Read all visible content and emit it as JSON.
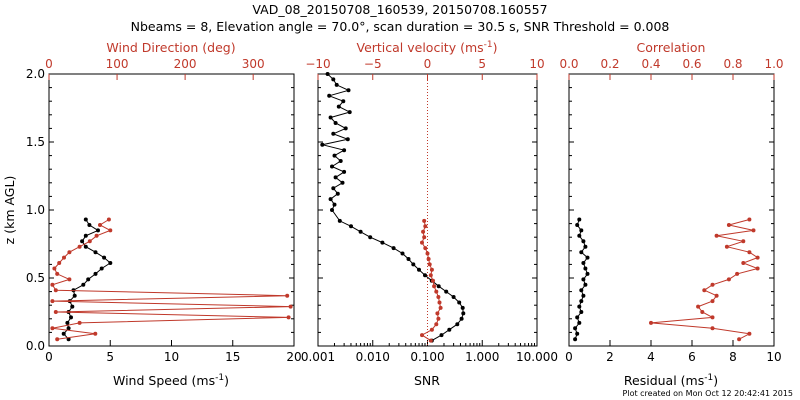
{
  "title_line1": "VAD_08_20150708_160539, 20150708.160557",
  "title_line2": "Nbeams = 8, Elevation angle = 70.0°, scan duration = 30.5 s, SNR Threshold = 0.008",
  "footer": "Plot created on Mon Oct 12 20:42:41 2015",
  "colors": {
    "black": "#000000",
    "red": "#c0392b"
  },
  "chart_data": [
    {
      "type": "line",
      "panel": "wind",
      "ylabel": "z (km AGL)",
      "ylim": [
        0,
        2.0
      ],
      "yticks": [
        "0.0",
        "0.5",
        "1.0",
        "1.5",
        "2.0"
      ],
      "xlabel": "Wind Speed (ms",
      "xlabel_unit_exp": "-1",
      "xlim": [
        0,
        20
      ],
      "xticks": [
        "0",
        "5",
        "10",
        "15",
        "20"
      ],
      "top_label": "Wind Direction (deg)",
      "top_lim": [
        0,
        360
      ],
      "top_ticks": [
        "0",
        "100",
        "200",
        "300"
      ],
      "series": [
        {
          "name": "Wind Speed",
          "color": "black",
          "axis": "bottom",
          "z": [
            0.05,
            0.09,
            0.13,
            0.17,
            0.21,
            0.25,
            0.29,
            0.33,
            0.37,
            0.41,
            0.45,
            0.49,
            0.53,
            0.57,
            0.61,
            0.65,
            0.69,
            0.73,
            0.77,
            0.81,
            0.85,
            0.89,
            0.93
          ],
          "values": [
            1.6,
            1.2,
            1.6,
            1.5,
            1.8,
            1.6,
            1.9,
            1.7,
            2.1,
            2.0,
            2.8,
            3.2,
            3.8,
            4.3,
            5.0,
            4.5,
            3.8,
            3.0,
            2.7,
            3.0,
            4.0,
            3.3,
            3.0
          ]
        },
        {
          "name": "Wind Direction",
          "color": "red",
          "axis": "top",
          "z": [
            0.05,
            0.09,
            0.13,
            0.17,
            0.21,
            0.25,
            0.29,
            0.33,
            0.37,
            0.41,
            0.45,
            0.49,
            0.53,
            0.57,
            0.61,
            0.65,
            0.69,
            0.73,
            0.77,
            0.81,
            0.85,
            0.89,
            0.93
          ],
          "values": [
            12,
            68,
            5,
            45,
            352,
            10,
            355,
            5,
            350,
            10,
            5,
            30,
            12,
            8,
            15,
            22,
            30,
            45,
            60,
            70,
            90,
            75,
            88
          ]
        }
      ]
    },
    {
      "type": "line",
      "panel": "snr",
      "xlabel": "SNR",
      "xscale": "log",
      "xlim": [
        0.001,
        10.0
      ],
      "xticks": [
        "0.001",
        "0.010",
        "0.100",
        "1.000",
        "10.000"
      ],
      "top_label": "Vertical velocity (ms",
      "top_label_unit_exp": "-1",
      "top_lim": [
        -10,
        10
      ],
      "top_ticks": [
        "−10",
        "−5",
        "0",
        "5",
        "10"
      ],
      "zero_line_w": 0,
      "series": [
        {
          "name": "SNR",
          "color": "black",
          "axis": "bottom",
          "z": [
            0.04,
            0.08,
            0.12,
            0.16,
            0.2,
            0.24,
            0.28,
            0.32,
            0.36,
            0.4,
            0.44,
            0.48,
            0.52,
            0.56,
            0.6,
            0.64,
            0.68,
            0.72,
            0.76,
            0.8,
            0.84,
            0.88,
            0.92,
            1.0,
            1.04,
            1.08,
            1.12,
            1.16,
            1.2,
            1.24,
            1.28,
            1.32,
            1.36,
            1.4,
            1.44,
            1.48,
            1.52,
            1.56,
            1.6,
            1.64,
            1.68,
            1.72,
            1.76,
            1.8,
            1.84,
            1.88,
            1.92,
            1.96,
            2.0
          ],
          "values": [
            0.12,
            0.18,
            0.25,
            0.35,
            0.42,
            0.45,
            0.44,
            0.38,
            0.3,
            0.22,
            0.16,
            0.12,
            0.09,
            0.07,
            0.055,
            0.045,
            0.035,
            0.024,
            0.015,
            0.009,
            0.006,
            0.004,
            0.0025,
            0.0018,
            0.002,
            0.0017,
            0.0023,
            0.0019,
            0.0028,
            0.0021,
            0.003,
            0.0018,
            0.0026,
            0.002,
            0.003,
            0.0012,
            0.0035,
            0.0019,
            0.0032,
            0.0021,
            0.0017,
            0.0038,
            0.0024,
            0.0029,
            0.0016,
            0.0036,
            0.0022,
            0.0019,
            0.0015
          ]
        },
        {
          "name": "Vertical velocity",
          "color": "red",
          "axis": "top",
          "z": [
            0.04,
            0.08,
            0.12,
            0.16,
            0.2,
            0.24,
            0.28,
            0.32,
            0.36,
            0.4,
            0.44,
            0.48,
            0.52,
            0.56,
            0.6,
            0.64,
            0.68,
            0.72,
            0.76,
            0.8,
            0.84,
            0.88,
            0.92
          ],
          "values": [
            0.3,
            -0.5,
            0.4,
            0.8,
            1.0,
            0.9,
            1.2,
            1.1,
            1.0,
            0.8,
            0.6,
            0.5,
            0.3,
            0.4,
            0.2,
            0.1,
            0.0,
            -0.2,
            -0.5,
            -0.3,
            -0.4,
            -0.2,
            -0.3
          ]
        }
      ]
    },
    {
      "type": "line",
      "panel": "residual",
      "xlabel": "Residual (ms",
      "xlabel_unit_exp": "-1",
      "xlim": [
        0,
        10
      ],
      "xticks": [
        "0",
        "2",
        "4",
        "6",
        "8",
        "10"
      ],
      "top_label": "Correlation",
      "top_lim": [
        0,
        1.0
      ],
      "top_ticks": [
        "0.0",
        "0.2",
        "0.4",
        "0.6",
        "0.8",
        "1.0"
      ],
      "series": [
        {
          "name": "Residual",
          "color": "black",
          "axis": "bottom",
          "z": [
            0.05,
            0.09,
            0.13,
            0.17,
            0.21,
            0.25,
            0.29,
            0.33,
            0.37,
            0.41,
            0.45,
            0.49,
            0.53,
            0.57,
            0.61,
            0.65,
            0.69,
            0.73,
            0.77,
            0.81,
            0.85,
            0.89,
            0.93
          ],
          "values": [
            0.3,
            0.4,
            0.3,
            0.5,
            0.4,
            0.6,
            0.5,
            0.6,
            0.7,
            0.6,
            0.8,
            0.7,
            0.9,
            0.8,
            0.7,
            0.9,
            0.6,
            0.8,
            0.7,
            0.5,
            0.6,
            0.4,
            0.5
          ]
        },
        {
          "name": "Correlation",
          "color": "red",
          "axis": "top",
          "z": [
            0.05,
            0.09,
            0.13,
            0.17,
            0.21,
            0.25,
            0.29,
            0.33,
            0.37,
            0.41,
            0.45,
            0.49,
            0.53,
            0.57,
            0.61,
            0.65,
            0.69,
            0.73,
            0.77,
            0.81,
            0.85,
            0.89,
            0.93
          ],
          "values": [
            0.83,
            0.88,
            0.7,
            0.4,
            0.7,
            0.65,
            0.63,
            0.7,
            0.72,
            0.66,
            0.7,
            0.78,
            0.82,
            0.92,
            0.85,
            0.92,
            0.88,
            0.77,
            0.85,
            0.72,
            0.9,
            0.78,
            0.88
          ]
        }
      ]
    }
  ]
}
